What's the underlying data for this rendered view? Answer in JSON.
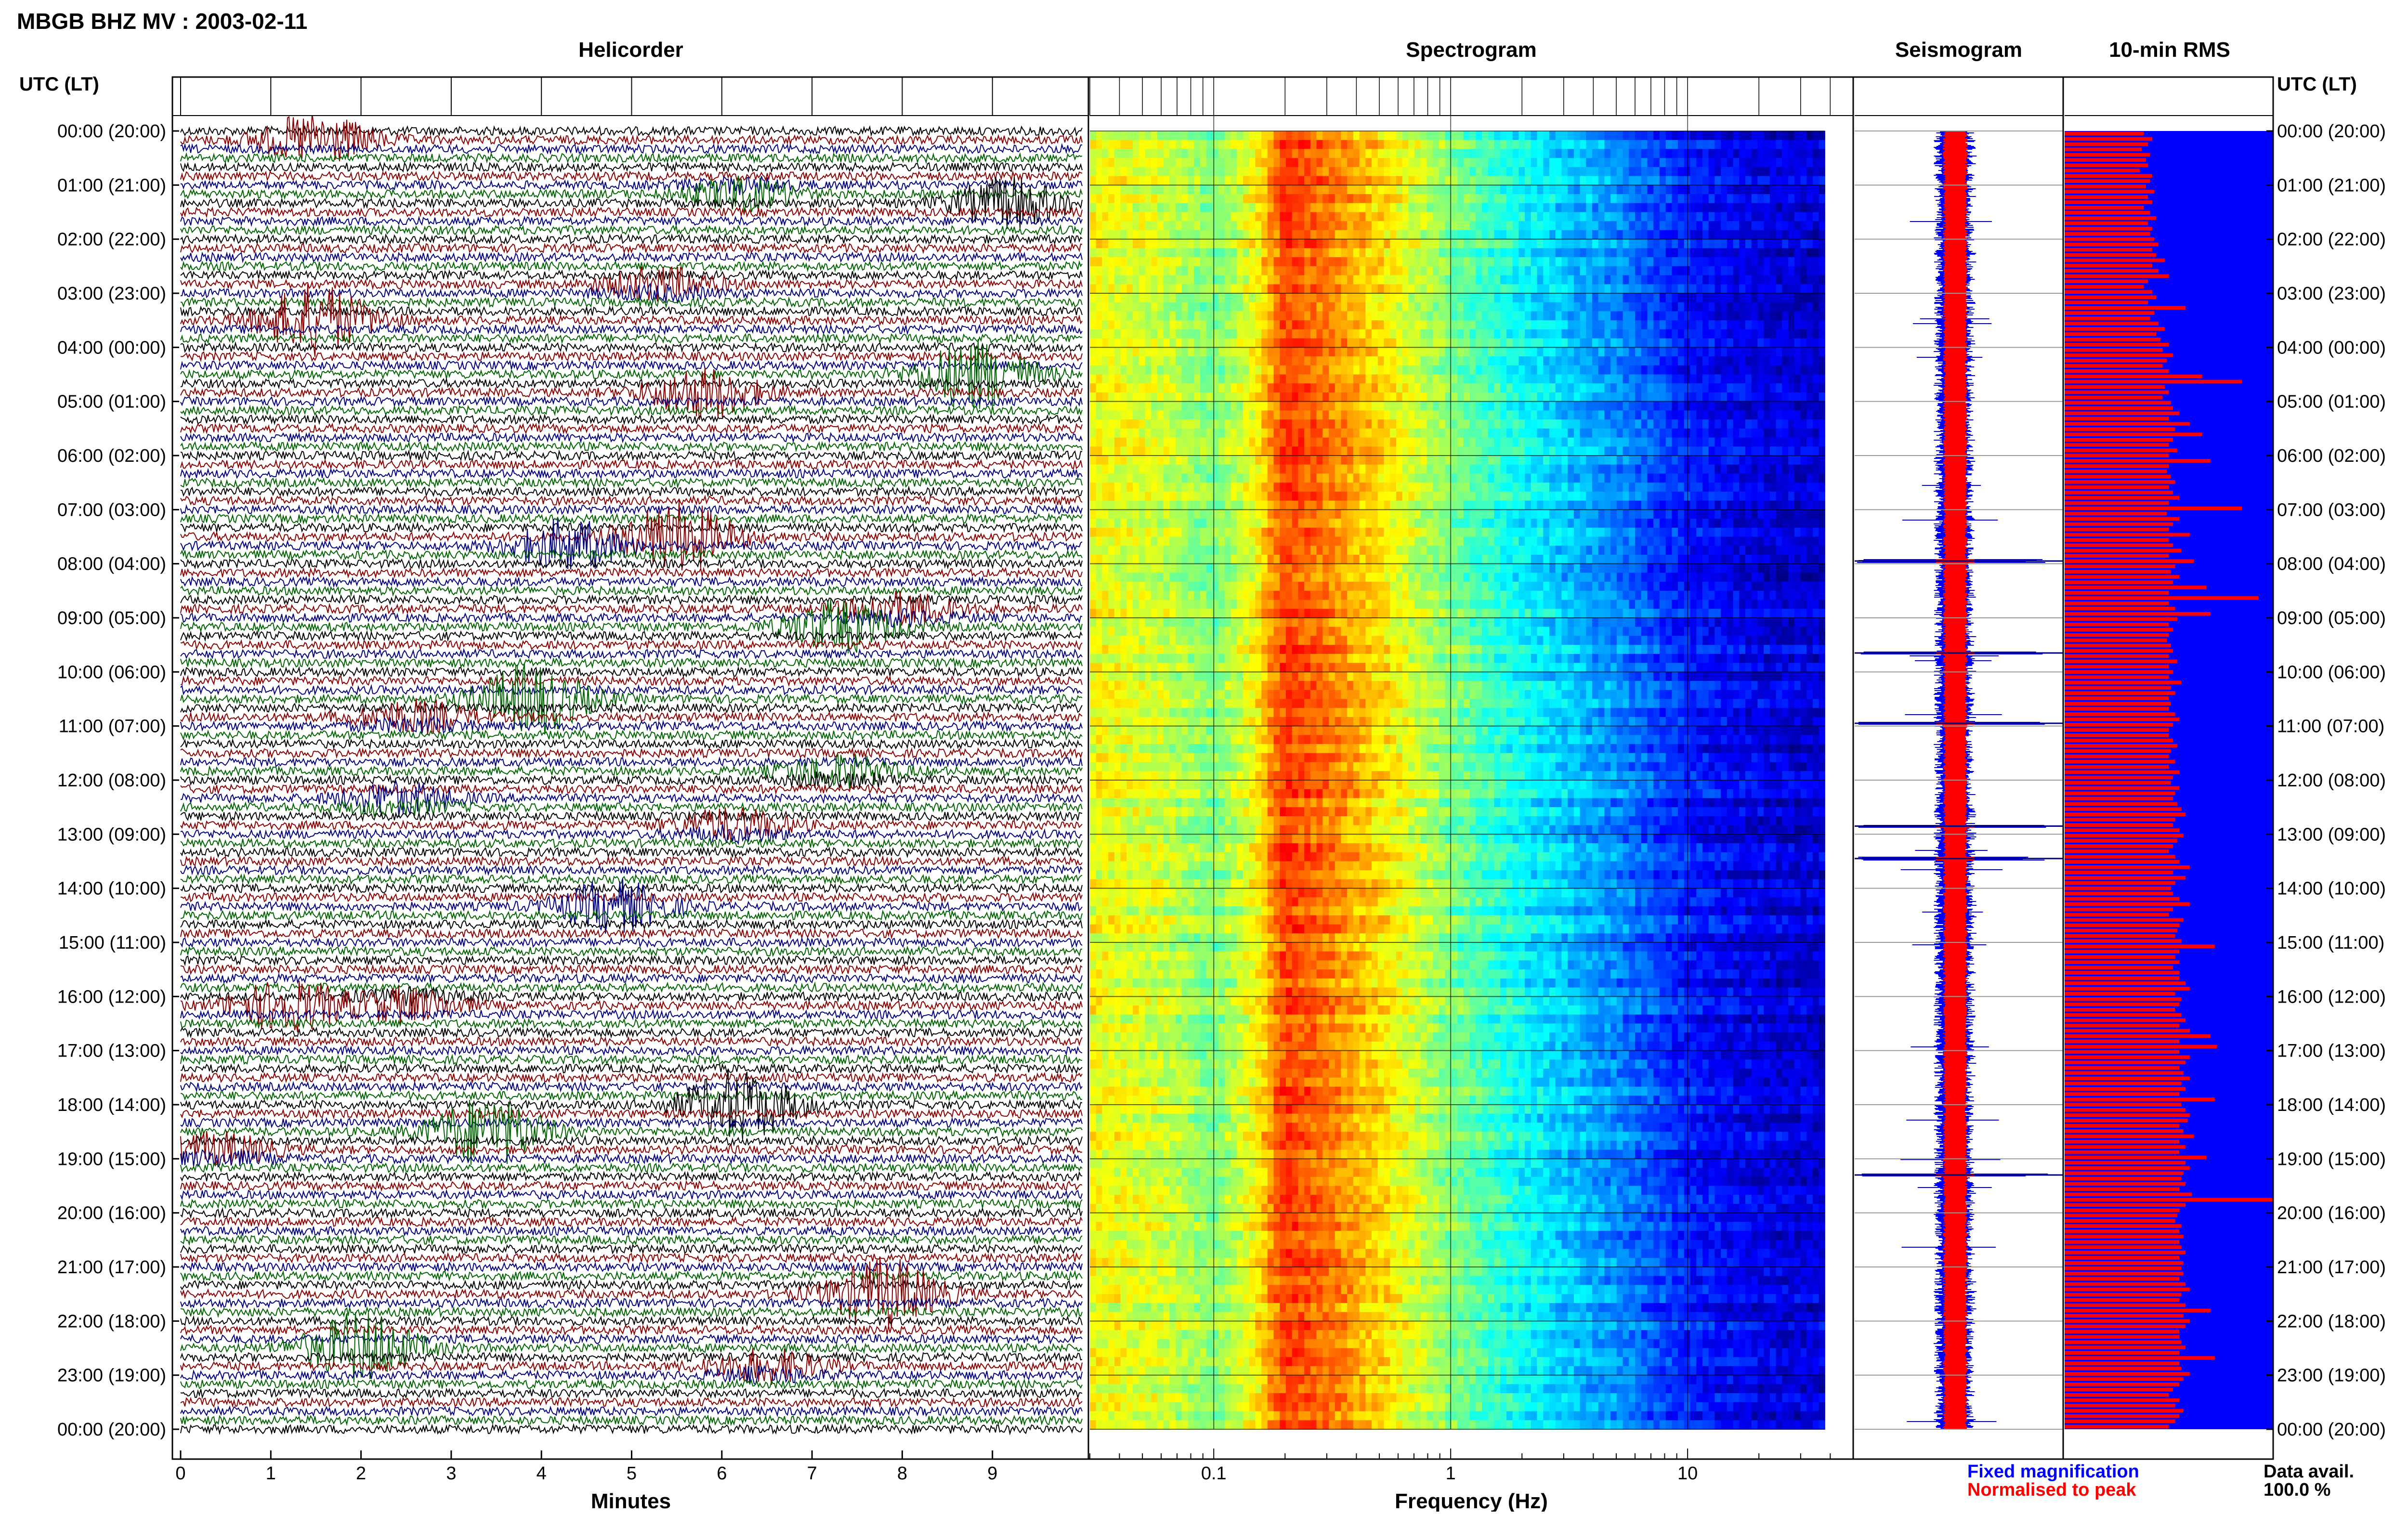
{
  "header": {
    "title": "MBGB BHZ MV : 2003-02-11",
    "utc_label": "UTC (LT)"
  },
  "panels": {
    "helicorder": "Helicorder",
    "spectrogram": "Spectrogram",
    "seismogram": "Seismogram",
    "rms": "10-min RMS"
  },
  "axes": {
    "helicorder_xlabel": "Minutes",
    "spectrogram_xlabel": "Frequency (Hz)"
  },
  "footer": {
    "fixed_magnification": "Fixed magnification",
    "normalised_to_peak": "Normalised to peak",
    "data_avail_label": "Data avail.",
    "data_avail_value": "100.0 %"
  },
  "colors": {
    "trace_black": "#000000",
    "trace_red": "#8b0000",
    "trace_blue": "#000080",
    "trace_green": "#006400",
    "fixed": "#0000ff",
    "normalised": "#ff0000",
    "rms_background": "#0000ff",
    "rms_bar": "#ff0000"
  },
  "chart_data": [
    {
      "type": "line",
      "panel": "helicorder",
      "description_of_scale": "x in minutes within each 10-minute line; one line per 10 minutes",
      "xlim": [
        0,
        10
      ],
      "x_ticks": [
        "0",
        "1",
        "2",
        "3",
        "4",
        "5",
        "6",
        "7",
        "8",
        "9"
      ],
      "y_tick_labels": [
        "00:00 (20:00)",
        "01:00 (21:00)",
        "02:00 (22:00)",
        "03:00 (23:00)",
        "04:00 (00:00)",
        "05:00 (01:00)",
        "06:00 (02:00)",
        "07:00 (03:00)",
        "08:00 (04:00)",
        "09:00 (05:00)",
        "10:00 (06:00)",
        "11:00 (07:00)",
        "12:00 (08:00)",
        "13:00 (09:00)",
        "14:00 (10:00)",
        "15:00 (11:00)",
        "16:00 (12:00)",
        "17:00 (13:00)",
        "18:00 (14:00)",
        "19:00 (15:00)",
        "20:00 (16:00)",
        "21:00 (17:00)",
        "22:00 (18:00)",
        "23:00 (19:00)",
        "00:00 (20:00)"
      ],
      "lines_per_hour": 6,
      "trace_colors_cycle": [
        "#000000",
        "#8b0000",
        "#000080",
        "#006400"
      ],
      "events": [
        {
          "hour": 0.2,
          "minute": 1.5,
          "color": "#006400"
        },
        {
          "hour": 1.1,
          "minute": 6.2,
          "color": "#006400"
        },
        {
          "hour": 1.3,
          "minute": 9.2,
          "color": "#8b0000"
        },
        {
          "hour": 2.9,
          "minute": 5.3,
          "color": "#000000"
        },
        {
          "hour": 3.5,
          "minute": 1.5,
          "color": "#000080"
        },
        {
          "hour": 4.5,
          "minute": 8.8,
          "color": "#000000"
        },
        {
          "hour": 4.8,
          "minute": 5.8,
          "color": "#000080"
        },
        {
          "hour": 7.7,
          "minute": 4.3,
          "color": "#006400"
        },
        {
          "hour": 7.5,
          "minute": 5.5,
          "color": "#8b0000"
        },
        {
          "hour": 8.9,
          "minute": 8.0,
          "color": "#8b0000"
        },
        {
          "hour": 9.2,
          "minute": 7.3,
          "color": "#006400"
        },
        {
          "hour": 10.5,
          "minute": 3.9,
          "color": "#8b0000"
        },
        {
          "hour": 10.9,
          "minute": 2.6,
          "color": "#8b0000"
        },
        {
          "hour": 11.9,
          "minute": 7.3,
          "color": "#8b0000"
        },
        {
          "hour": 12.4,
          "minute": 2.4,
          "color": "#8b0000"
        },
        {
          "hour": 12.9,
          "minute": 6.1,
          "color": "#000000"
        },
        {
          "hour": 14.3,
          "minute": 4.8,
          "color": "#006400"
        },
        {
          "hour": 16.1,
          "minute": 2.5,
          "color": "#006400"
        },
        {
          "hour": 16.2,
          "minute": 1.2,
          "color": "#000080"
        },
        {
          "hour": 18.0,
          "minute": 6.2,
          "color": "#006400"
        },
        {
          "hour": 18.9,
          "minute": 0.4,
          "color": "#000000"
        },
        {
          "hour": 18.5,
          "minute": 3.4,
          "color": "#000080"
        },
        {
          "hour": 21.5,
          "minute": 7.8,
          "color": "#000080"
        },
        {
          "hour": 22.5,
          "minute": 2.0,
          "color": "#000000"
        },
        {
          "hour": 22.9,
          "minute": 6.5,
          "color": "#000000"
        }
      ]
    },
    {
      "type": "heatmap",
      "panel": "spectrogram",
      "xscale": "log",
      "xlim": [
        0.03,
        50
      ],
      "x_ticks": [
        0.1,
        1,
        10
      ],
      "x_tick_labels": [
        "0.1",
        "1",
        "10"
      ],
      "y_tick_labels": [
        "00:00 (20:00)",
        "01:00 (21:00)",
        "02:00 (22:00)",
        "03:00 (23:00)",
        "04:00 (00:00)",
        "05:00 (01:00)",
        "06:00 (02:00)",
        "07:00 (03:00)",
        "08:00 (04:00)",
        "09:00 (05:00)",
        "10:00 (06:00)",
        "11:00 (07:00)",
        "12:00 (08:00)",
        "13:00 (09:00)",
        "14:00 (10:00)",
        "15:00 (11:00)",
        "16:00 (12:00)",
        "17:00 (13:00)",
        "18:00 (14:00)",
        "19:00 (15:00)",
        "20:00 (16:00)",
        "21:00 (17:00)",
        "22:00 (18:00)",
        "23:00 (19:00)",
        "00:00 (20:00)"
      ],
      "colormap": "jet",
      "frequency_profile": [
        {
          "f": 0.03,
          "level": 0.62
        },
        {
          "f": 0.06,
          "level": 0.58
        },
        {
          "f": 0.1,
          "level": 0.5
        },
        {
          "f": 0.15,
          "level": 0.62
        },
        {
          "f": 0.2,
          "level": 0.82
        },
        {
          "f": 0.3,
          "level": 0.76
        },
        {
          "f": 0.5,
          "level": 0.66
        },
        {
          "f": 1,
          "level": 0.5
        },
        {
          "f": 2,
          "level": 0.38
        },
        {
          "f": 5,
          "level": 0.26
        },
        {
          "f": 10,
          "level": 0.15
        },
        {
          "f": 20,
          "level": 0.1
        },
        {
          "f": 40,
          "level": 0.08
        }
      ]
    },
    {
      "type": "line",
      "panel": "seismogram",
      "series": [
        {
          "name": "Fixed magnification",
          "color": "#0000ff"
        },
        {
          "name": "Normalised to peak",
          "color": "#ff0000"
        }
      ],
      "y_tick_labels": [
        "00:00 (20:00)",
        "01:00 (21:00)",
        "02:00 (22:00)",
        "03:00 (23:00)",
        "04:00 (00:00)",
        "05:00 (01:00)",
        "06:00 (02:00)",
        "07:00 (03:00)",
        "08:00 (04:00)",
        "09:00 (05:00)",
        "10:00 (06:00)",
        "11:00 (07:00)",
        "12:00 (08:00)",
        "13:00 (09:00)",
        "14:00 (10:00)",
        "15:00 (11:00)",
        "16:00 (12:00)",
        "17:00 (13:00)",
        "18:00 (14:00)",
        "19:00 (15:00)",
        "20:00 (16:00)",
        "21:00 (17:00)",
        "22:00 (18:00)",
        "23:00 (19:00)",
        "00:00 (20:00)"
      ],
      "spikes_hours": [
        7.95,
        9.65,
        10.95,
        12.85,
        13.45,
        19.3
      ]
    },
    {
      "type": "bar",
      "panel": "rms",
      "orientation": "horizontal",
      "description": "one bar per 10-minute interval, relative amplitude 0-1",
      "y_tick_labels": [
        "00:00 (20:00)",
        "01:00 (21:00)",
        "02:00 (22:00)",
        "03:00 (23:00)",
        "04:00 (00:00)",
        "05:00 (01:00)",
        "06:00 (02:00)",
        "07:00 (03:00)",
        "08:00 (04:00)",
        "09:00 (05:00)",
        "10:00 (06:00)",
        "11:00 (07:00)",
        "12:00 (08:00)",
        "13:00 (09:00)",
        "14:00 (10:00)",
        "15:00 (11:00)",
        "16:00 (12:00)",
        "17:00 (13:00)",
        "18:00 (14:00)",
        "19:00 (15:00)",
        "20:00 (16:00)",
        "21:00 (17:00)",
        "22:00 (18:00)",
        "23:00 (19:00)",
        "00:00 (20:00)"
      ],
      "values": [
        0.38,
        0.42,
        0.4,
        0.37,
        0.41,
        0.39,
        0.4,
        0.36,
        0.42,
        0.41,
        0.39,
        0.43,
        0.4,
        0.42,
        0.38,
        0.41,
        0.44,
        0.4,
        0.42,
        0.41,
        0.43,
        0.45,
        0.42,
        0.44,
        0.48,
        0.42,
        0.45,
        0.5,
        0.4,
        0.38,
        0.42,
        0.44,
        0.4,
        0.58,
        0.43,
        0.41,
        0.45,
        0.48,
        0.44,
        0.46,
        0.5,
        0.47,
        0.52,
        0.49,
        0.47,
        0.5,
        0.66,
        0.85,
        0.48,
        0.5,
        0.47,
        0.51,
        0.52,
        0.55,
        0.5,
        0.6,
        0.53,
        0.66,
        0.52,
        0.5,
        0.54,
        0.5,
        0.7,
        0.5,
        0.49,
        0.51,
        0.53,
        0.5,
        0.52,
        0.55,
        0.5,
        0.85,
        0.49,
        0.55,
        0.52,
        0.5,
        0.6,
        0.5,
        0.52,
        0.56,
        0.5,
        0.62,
        0.53,
        0.51,
        0.55,
        0.52,
        0.68,
        0.5,
        0.93,
        0.5,
        0.53,
        0.7,
        0.54,
        0.5,
        0.52,
        0.5,
        0.49,
        0.51,
        0.52,
        0.5,
        0.54,
        0.5,
        0.52,
        0.5,
        0.56,
        0.51,
        0.53,
        0.5,
        0.51,
        0.5,
        0.53,
        0.55,
        0.52,
        0.5,
        0.5,
        0.52,
        0.54,
        0.51,
        0.5,
        0.53,
        0.5,
        0.55,
        0.52,
        0.51,
        0.55,
        0.53,
        0.52,
        0.54,
        0.56,
        0.58,
        0.53,
        0.52,
        0.55,
        0.57,
        0.54,
        0.52,
        0.5,
        0.53,
        0.55,
        0.6,
        0.52,
        0.58,
        0.53,
        0.51,
        0.52,
        0.55,
        0.6,
        0.52,
        0.5,
        0.57,
        0.55,
        0.54,
        0.53,
        0.56,
        0.72,
        0.55,
        0.53,
        0.55,
        0.52,
        0.55,
        0.55,
        0.58,
        0.6,
        0.53,
        0.56,
        0.55,
        0.53,
        0.56,
        0.58,
        0.55,
        0.6,
        0.7,
        0.55,
        0.73,
        0.55,
        0.6,
        0.58,
        0.55,
        0.57,
        0.6,
        0.56,
        0.58,
        0.55,
        0.72,
        0.56,
        0.58,
        0.6,
        0.59,
        0.55,
        0.57,
        0.62,
        0.55,
        0.58,
        0.55,
        0.68,
        0.58,
        0.6,
        0.57,
        0.56,
        0.58,
        0.55,
        0.61,
        1.0,
        0.58,
        0.55,
        0.54,
        0.53,
        0.56,
        0.55,
        0.57,
        0.55,
        0.56,
        0.58,
        0.55,
        0.57,
        0.56,
        0.57,
        0.55,
        0.58,
        0.6,
        0.56,
        0.55,
        0.58,
        0.7,
        0.57,
        0.6,
        0.58,
        0.55,
        0.55,
        0.56,
        0.58,
        0.55,
        0.72,
        0.55,
        0.56,
        0.6,
        0.57,
        0.55,
        0.52,
        0.5,
        0.55,
        0.53,
        0.57,
        0.55,
        0.53,
        0.5
      ]
    }
  ]
}
